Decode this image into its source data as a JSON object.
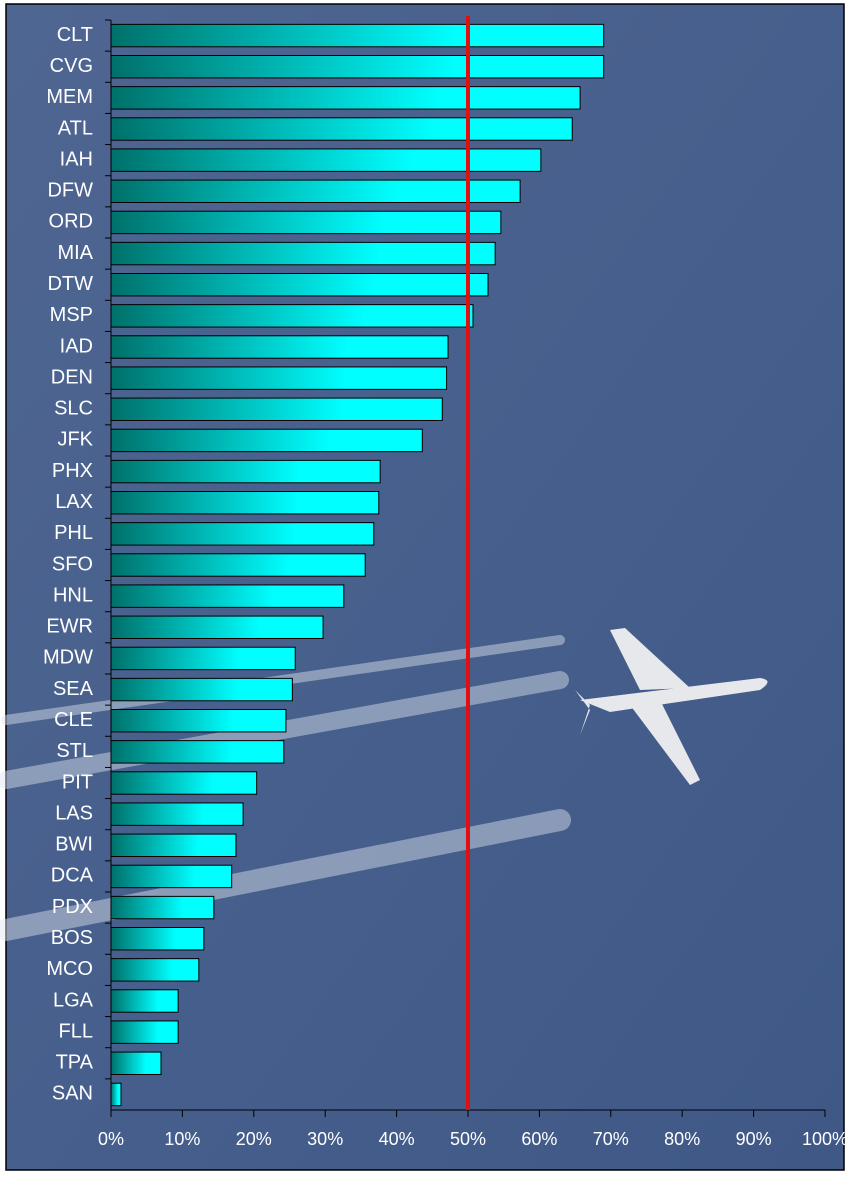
{
  "chart_data": {
    "type": "hbar",
    "categories": [
      "CLT",
      "CVG",
      "MEM",
      "ATL",
      "IAH",
      "DFW",
      "ORD",
      "MIA",
      "DTW",
      "MSP",
      "IAD",
      "DEN",
      "SLC",
      "JFK",
      "PHX",
      "LAX",
      "PHL",
      "SFO",
      "HNL",
      "EWR",
      "MDW",
      "SEA",
      "CLE",
      "STL",
      "PIT",
      "LAS",
      "BWI",
      "DCA",
      "PDX",
      "BOS",
      "MCO",
      "LGA",
      "FLL",
      "TPA",
      "SAN"
    ],
    "values": [
      69.0,
      69.0,
      65.7,
      64.6,
      60.2,
      57.3,
      54.6,
      53.8,
      52.8,
      50.7,
      47.2,
      47.0,
      46.4,
      43.6,
      37.7,
      37.5,
      36.8,
      35.6,
      32.6,
      29.7,
      25.8,
      25.4,
      24.5,
      24.2,
      20.4,
      18.5,
      17.5,
      16.9,
      14.4,
      13.0,
      12.3,
      9.4,
      9.4,
      7.0,
      1.4
    ],
    "xlim": [
      0,
      100
    ],
    "xticks": [
      {
        "value": 0,
        "label": "0%"
      },
      {
        "value": 10,
        "label": "10%"
      },
      {
        "value": 20,
        "label": "20%"
      },
      {
        "value": 30,
        "label": "30%"
      },
      {
        "value": 40,
        "label": "40%"
      },
      {
        "value": 50,
        "label": "50%"
      },
      {
        "value": 60,
        "label": "60%"
      },
      {
        "value": 70,
        "label": "70%"
      },
      {
        "value": 80,
        "label": "80%"
      },
      {
        "value": 90,
        "label": "90%"
      },
      {
        "value": 100,
        "label": "100%"
      }
    ],
    "reference_line": 50,
    "reference_color": "#e01010",
    "color_start": "#00706a",
    "color_end": "#00ffff"
  }
}
